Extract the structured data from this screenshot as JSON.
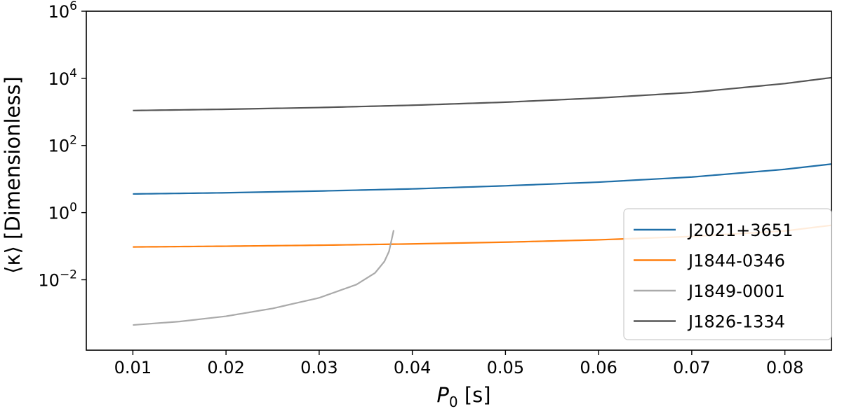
{
  "chart_data": {
    "type": "line",
    "title": "",
    "xlabel": {
      "symbol": "P",
      "subscript": "0",
      "unit": " [s]"
    },
    "ylabel": "⟨κ⟩ [Dimensionless]",
    "xlim": [
      0.005,
      0.085
    ],
    "ylim": [
      8e-05,
      1000000
    ],
    "yscale": "log",
    "grid": false,
    "legend_position": "center-right",
    "x_ticks": [
      0.01,
      0.02,
      0.03,
      0.04,
      0.05,
      0.06,
      0.07,
      0.08
    ],
    "x_tick_labels": [
      "0.01",
      "0.02",
      "0.03",
      "0.04",
      "0.05",
      "0.06",
      "0.07",
      "0.08"
    ],
    "y_ticks": [
      {
        "value": 0.01,
        "base": "10",
        "exp": "−2"
      },
      {
        "value": 1,
        "base": "10",
        "exp": "0"
      },
      {
        "value": 100,
        "base": "10",
        "exp": "2"
      },
      {
        "value": 10000,
        "base": "10",
        "exp": "4"
      },
      {
        "value": 1000000,
        "base": "10",
        "exp": "6"
      }
    ],
    "series": [
      {
        "name": "J2021+3651",
        "color": "#1f6fa8",
        "x": [
          0.01,
          0.02,
          0.03,
          0.04,
          0.05,
          0.06,
          0.07,
          0.08,
          0.085
        ],
        "y": [
          3.6,
          3.9,
          4.4,
          5.1,
          6.3,
          8.1,
          11.5,
          19.5,
          28
        ]
      },
      {
        "name": "J1844-0346",
        "color": "#ff7f0e",
        "x": [
          0.01,
          0.02,
          0.03,
          0.04,
          0.05,
          0.06,
          0.07,
          0.08,
          0.085
        ],
        "y": [
          0.095,
          0.1,
          0.107,
          0.117,
          0.132,
          0.155,
          0.195,
          0.285,
          0.42
        ]
      },
      {
        "name": "J1849-0001",
        "color": "#aaaaaa",
        "x": [
          0.01,
          0.015,
          0.02,
          0.025,
          0.03,
          0.034,
          0.036,
          0.037,
          0.0375,
          0.038
        ],
        "y": [
          0.00045,
          0.00057,
          0.00082,
          0.0014,
          0.0029,
          0.0072,
          0.016,
          0.035,
          0.07,
          0.3
        ]
      },
      {
        "name": "J1826-1334",
        "color": "#555555",
        "x": [
          0.01,
          0.02,
          0.03,
          0.04,
          0.05,
          0.06,
          0.07,
          0.08,
          0.085
        ],
        "y": [
          1100,
          1200,
          1350,
          1580,
          1950,
          2600,
          3800,
          7000,
          10500
        ]
      }
    ]
  }
}
